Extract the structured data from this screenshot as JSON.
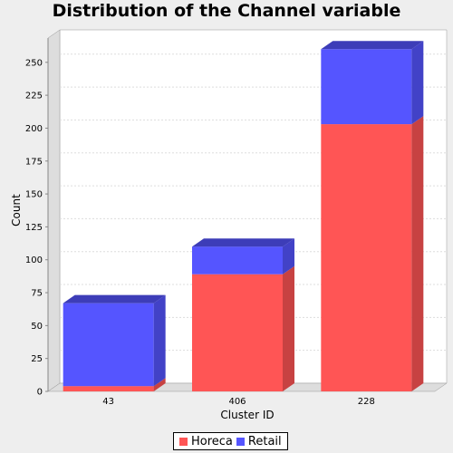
{
  "chart_data": {
    "type": "bar",
    "stacked": true,
    "three_d": true,
    "title": "Distribution of the Channel variable",
    "xlabel": "Cluster ID",
    "ylabel": "Count",
    "categories": [
      "43",
      "406",
      "228"
    ],
    "series": [
      {
        "name": "Horeca",
        "color": "#ff5555",
        "values": [
          4,
          89,
          203
        ]
      },
      {
        "name": "Retail",
        "color": "#5555ff",
        "values": [
          63,
          21,
          57
        ]
      }
    ],
    "ylim": [
      0,
      265
    ],
    "yticks": [
      "0",
      "25",
      "50",
      "75",
      "100",
      "125",
      "150",
      "175",
      "200",
      "225",
      "250"
    ],
    "grid": true,
    "legend_position": "bottom-center"
  }
}
